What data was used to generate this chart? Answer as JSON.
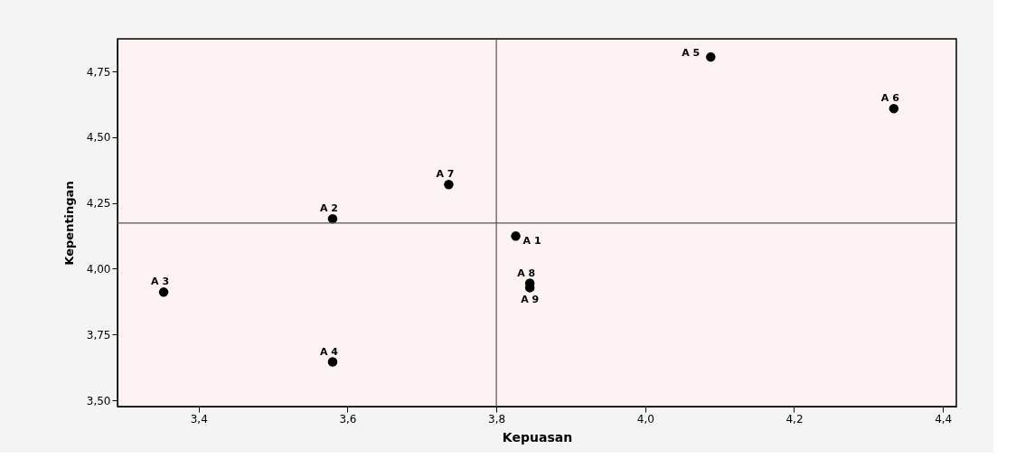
{
  "chart_data": {
    "type": "scatter",
    "xlabel": "Kepuasan",
    "ylabel": "Kepentingan",
    "x": [
      3.826,
      3.58,
      3.353,
      3.58,
      4.088,
      4.334,
      3.736,
      3.845,
      3.845
    ],
    "series": [
      {
        "color": "#000000",
        "values": [
          4.124,
          4.19,
          3.911,
          3.646,
          4.805,
          4.609,
          4.32,
          3.945,
          3.928
        ]
      }
    ],
    "annotations": [
      {
        "text": "A 1",
        "x": 3.826,
        "y": 4.124
      },
      {
        "text": "A 2",
        "x": 3.58,
        "y": 4.19
      },
      {
        "text": "A 3",
        "x": 3.353,
        "y": 3.911
      },
      {
        "text": "A 4",
        "x": 3.58,
        "y": 3.646
      },
      {
        "text": "A 5",
        "x": 4.088,
        "y": 4.805
      },
      {
        "text": "A 6",
        "x": 4.334,
        "y": 4.609
      },
      {
        "text": "A 7",
        "x": 3.736,
        "y": 4.32
      },
      {
        "text": "A 8",
        "x": 3.845,
        "y": 3.945
      },
      {
        "text": "A 9",
        "x": 3.845,
        "y": 3.928
      }
    ],
    "xlim": [
      3.291,
      4.418
    ],
    "ylim": [
      3.476,
      4.874
    ],
    "xticks": [
      {
        "value": 3.4,
        "label": "3,4"
      },
      {
        "value": 3.6,
        "label": "3,6"
      },
      {
        "value": 3.8,
        "label": "3,8"
      },
      {
        "value": 4.0,
        "label": "4,0"
      },
      {
        "value": 4.2,
        "label": "4,2"
      },
      {
        "value": 4.4,
        "label": "4,4"
      }
    ],
    "yticks": [
      {
        "value": 3.5,
        "label": "3,50"
      },
      {
        "value": 3.75,
        "label": "3,75"
      },
      {
        "value": 4.0,
        "label": "4,00"
      },
      {
        "value": 4.25,
        "label": "4,25"
      },
      {
        "value": 4.5,
        "label": "4,50"
      },
      {
        "value": 4.75,
        "label": "4,75"
      }
    ],
    "ref_lines": [
      {
        "axis": "x",
        "value": 3.8,
        "color": "#555555"
      },
      {
        "axis": "y",
        "value": 4.174,
        "color": "#555555"
      }
    ],
    "grid": false
  }
}
